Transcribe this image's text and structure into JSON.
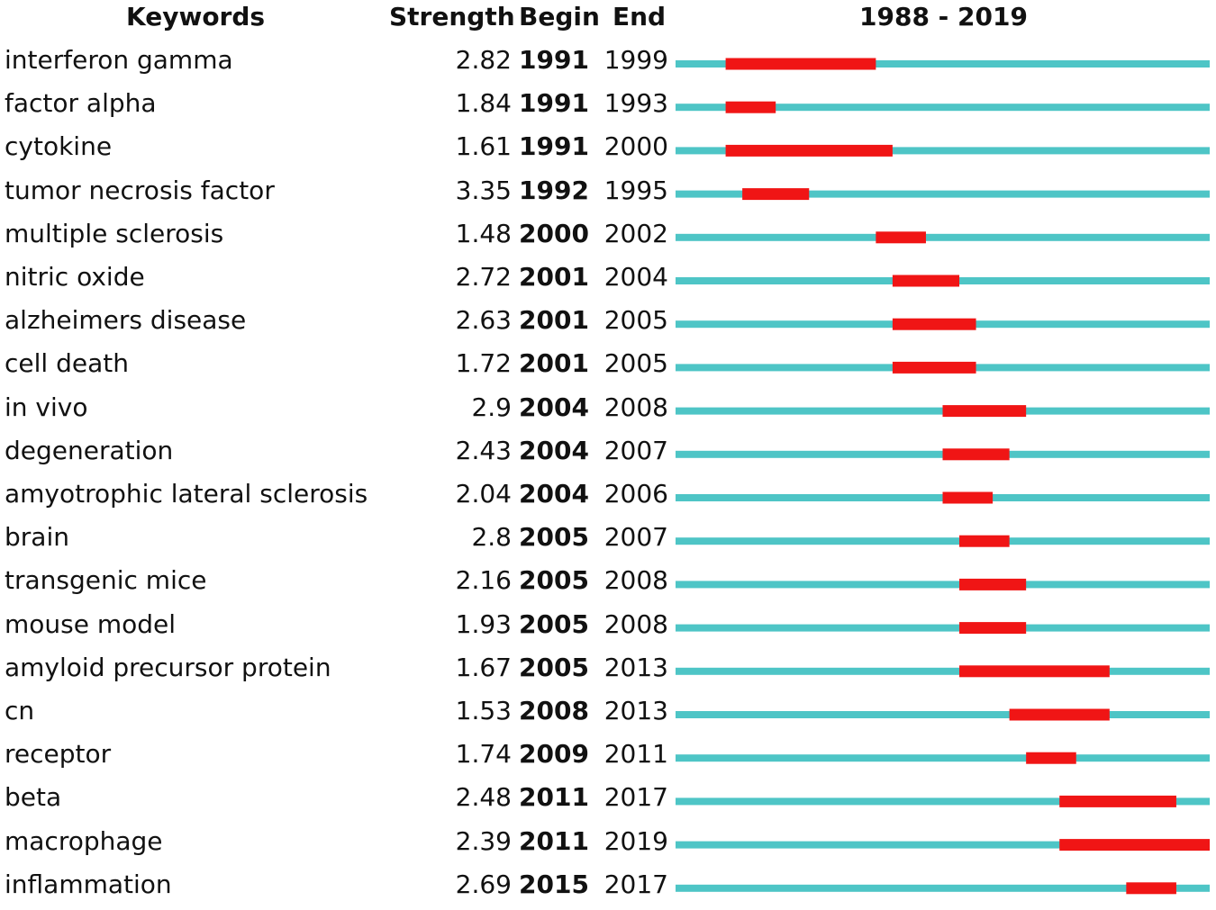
{
  "header": {
    "keywords": "Keywords",
    "strength": "Strength",
    "begin": "Begin",
    "end": "End",
    "range": "1988 - 2019"
  },
  "colors": {
    "timeline": "#4ec5c6",
    "burst": "#f01515",
    "text": "#111111"
  },
  "chart_data": {
    "type": "table",
    "title": "1988 - 2019",
    "range": [
      1988,
      2019
    ],
    "columns": [
      "Keywords",
      "Strength",
      "Begin",
      "End"
    ],
    "rows": [
      {
        "keyword": "interferon gamma",
        "strength": "2.82",
        "begin": "1991",
        "end": "1999"
      },
      {
        "keyword": "factor alpha",
        "strength": "1.84",
        "begin": "1991",
        "end": "1993"
      },
      {
        "keyword": "cytokine",
        "strength": "1.61",
        "begin": "1991",
        "end": "2000"
      },
      {
        "keyword": "tumor necrosis factor",
        "strength": "3.35",
        "begin": "1992",
        "end": "1995"
      },
      {
        "keyword": "multiple sclerosis",
        "strength": "1.48",
        "begin": "2000",
        "end": "2002"
      },
      {
        "keyword": "nitric oxide",
        "strength": "2.72",
        "begin": "2001",
        "end": "2004"
      },
      {
        "keyword": "alzheimers disease",
        "strength": "2.63",
        "begin": "2001",
        "end": "2005"
      },
      {
        "keyword": "cell death",
        "strength": "1.72",
        "begin": "2001",
        "end": "2005"
      },
      {
        "keyword": "in vivo",
        "strength": "2.9",
        "begin": "2004",
        "end": "2008"
      },
      {
        "keyword": "degeneration",
        "strength": "2.43",
        "begin": "2004",
        "end": "2007"
      },
      {
        "keyword": "amyotrophic lateral sclerosis",
        "strength": "2.04",
        "begin": "2004",
        "end": "2006"
      },
      {
        "keyword": "brain",
        "strength": "2.8",
        "begin": "2005",
        "end": "2007"
      },
      {
        "keyword": "transgenic mice",
        "strength": "2.16",
        "begin": "2005",
        "end": "2008"
      },
      {
        "keyword": "mouse model",
        "strength": "1.93",
        "begin": "2005",
        "end": "2008"
      },
      {
        "keyword": "amyloid precursor protein",
        "strength": "1.67",
        "begin": "2005",
        "end": "2013"
      },
      {
        "keyword": "cn",
        "strength": "1.53",
        "begin": "2008",
        "end": "2013"
      },
      {
        "keyword": "receptor",
        "strength": "1.74",
        "begin": "2009",
        "end": "2011"
      },
      {
        "keyword": "beta",
        "strength": "2.48",
        "begin": "2011",
        "end": "2017"
      },
      {
        "keyword": "macrophage",
        "strength": "2.39",
        "begin": "2011",
        "end": "2019"
      },
      {
        "keyword": "inflammation",
        "strength": "2.69",
        "begin": "2015",
        "end": "2017"
      }
    ]
  }
}
